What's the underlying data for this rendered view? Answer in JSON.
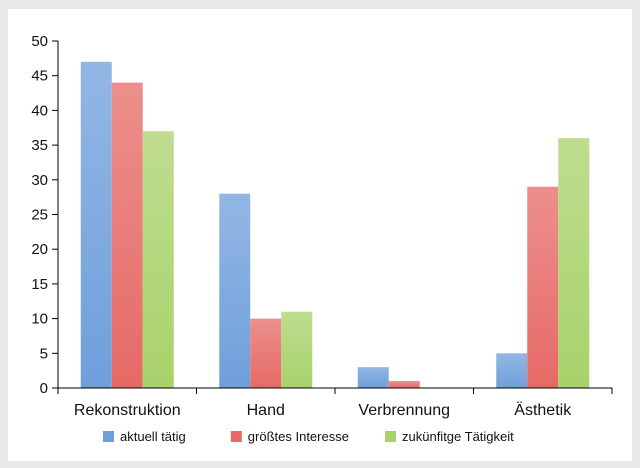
{
  "chart_data": {
    "type": "bar",
    "title": "",
    "xlabel": "",
    "ylabel": "",
    "categories": [
      "Rekonstruktion",
      "Hand",
      "Verbrennung",
      "Ästhetik"
    ],
    "series": [
      {
        "name": "aktuell tätig",
        "values": [
          47,
          28,
          3,
          5
        ],
        "color": "#6f9fdb"
      },
      {
        "name": "größtes Interesse",
        "values": [
          44,
          10,
          1,
          29
        ],
        "color": "#e66a66"
      },
      {
        "name": "zukünfitge Tätigkeit",
        "values": [
          37,
          11,
          0,
          36
        ],
        "color": "#a8d26a"
      }
    ],
    "ylim": [
      0,
      50
    ],
    "yticks": [
      0,
      5,
      10,
      15,
      20,
      25,
      30,
      35,
      40,
      45,
      50
    ],
    "grid": false,
    "legend_position": "bottom"
  }
}
